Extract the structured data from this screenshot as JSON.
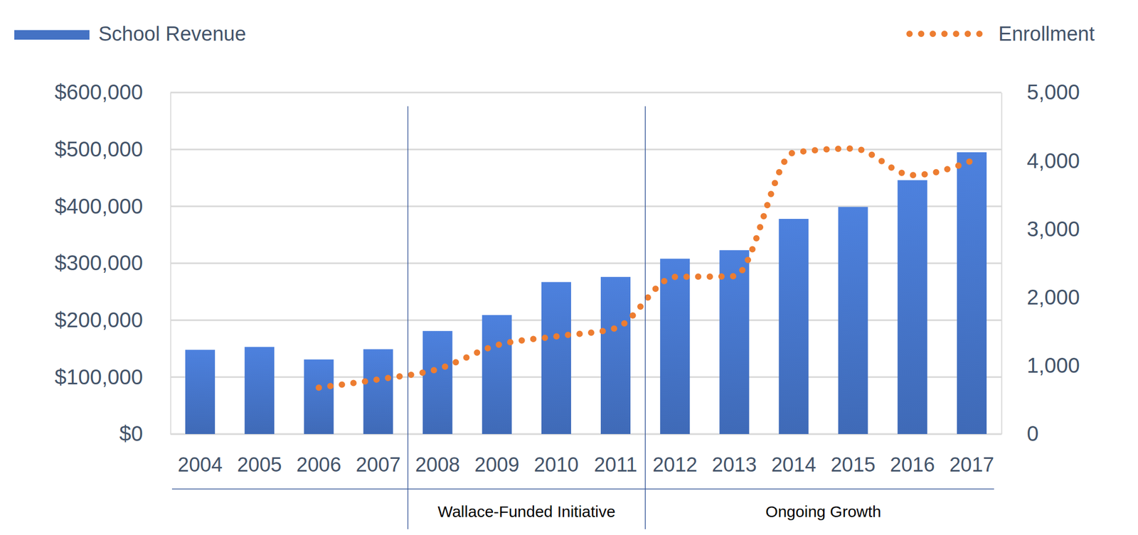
{
  "chart_data": {
    "type": "bar",
    "categories": [
      "2004",
      "2005",
      "2006",
      "2007",
      "2008",
      "2009",
      "2010",
      "2011",
      "2012",
      "2013",
      "2014",
      "2015",
      "2016",
      "2017"
    ],
    "series": [
      {
        "name": "School Revenue",
        "type": "bar",
        "color": "#4472c4",
        "values": [
          148000,
          153000,
          131000,
          149000,
          181000,
          209000,
          267000,
          276000,
          308000,
          323000,
          378000,
          399000,
          446000,
          495000
        ]
      },
      {
        "name": "Enrollment",
        "type": "line",
        "axis": "y2",
        "color": "#ed7d31",
        "line_style": "dotted",
        "values": [
          null,
          null,
          680,
          800,
          950,
          1300,
          1430,
          1550,
          2300,
          2310,
          4120,
          4180,
          3790,
          4000
        ]
      }
    ],
    "ylim": [
      0,
      600000
    ],
    "yticks": [
      {
        "value": 0,
        "label": "$0"
      },
      {
        "value": 100000,
        "label": "$100,000"
      },
      {
        "value": 200000,
        "label": "$200,000"
      },
      {
        "value": 300000,
        "label": "$300,000"
      },
      {
        "value": 400000,
        "label": "$400,000"
      },
      {
        "value": 500000,
        "label": "$500,000"
      },
      {
        "value": 600000,
        "label": "$600,000"
      }
    ],
    "y2lim": [
      0,
      5000
    ],
    "y2ticks": [
      0,
      {
        "value": 1000,
        "label": "1,000"
      },
      {
        "value": 2000,
        "label": "2,000"
      },
      {
        "value": 3000,
        "label": "3,000"
      },
      {
        "value": 4000,
        "label": "4,000"
      },
      {
        "value": 5000,
        "label": "5,000"
      }
    ],
    "grid": true,
    "legend": "top",
    "annotations": [
      {
        "text": "Wallace-Funded Initiative",
        "from": "2008",
        "to": "2011"
      },
      {
        "text": "Ongoing Growth",
        "from": "2012",
        "to": "2017"
      }
    ]
  }
}
